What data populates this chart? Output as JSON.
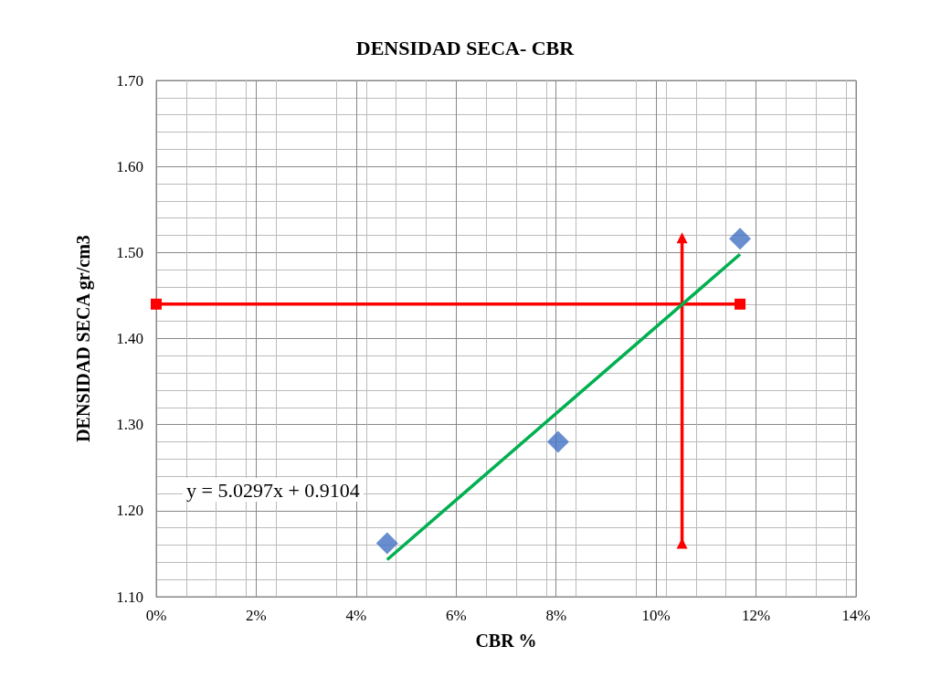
{
  "chart_data": {
    "type": "scatter",
    "title": "DENSIDAD SECA- CBR",
    "xlabel": "CBR %",
    "ylabel": "DENSIDAD SECA gr/cm3",
    "annotations": [
      "y = 5.0297x + 0.9104"
    ],
    "xlim": [
      0,
      14
    ],
    "ylim": [
      1.1,
      1.7
    ],
    "xticks": [
      {
        "value": 0,
        "label": "0%"
      },
      {
        "value": 2,
        "label": "2%"
      },
      {
        "value": 4,
        "label": "4%"
      },
      {
        "value": 6,
        "label": "6%"
      },
      {
        "value": 8,
        "label": "8%"
      },
      {
        "value": 10,
        "label": "10%"
      },
      {
        "value": 12,
        "label": "12%"
      },
      {
        "value": 14,
        "label": "14%"
      }
    ],
    "yticks": [
      {
        "value": 1.1,
        "label": "1.10"
      },
      {
        "value": 1.2,
        "label": "1.20"
      },
      {
        "value": 1.3,
        "label": "1.30"
      },
      {
        "value": 1.4,
        "label": "1.40"
      },
      {
        "value": 1.5,
        "label": "1.50"
      },
      {
        "value": 1.6,
        "label": "1.60"
      },
      {
        "value": 1.7,
        "label": "1.70"
      }
    ],
    "grid": true,
    "series": [
      {
        "type": "line",
        "color": "#ff0000",
        "marker": "square",
        "x": [
          0,
          11.68
        ],
        "values": [
          1.44,
          1.44
        ]
      },
      {
        "type": "line",
        "color": "#ff0000",
        "marker": "triangle",
        "x": [
          10.52,
          10.52
        ],
        "values": [
          1.162,
          1.517
        ]
      },
      {
        "type": "line",
        "color": "#00b050",
        "marker": "none",
        "x": [
          4.62,
          11.68
        ],
        "values": [
          1.143,
          1.498
        ]
      },
      {
        "color": "#4472c4",
        "marker": "diamond",
        "x": [
          4.62,
          8.04,
          11.68
        ],
        "values": [
          1.162,
          1.28,
          1.516
        ]
      }
    ]
  }
}
